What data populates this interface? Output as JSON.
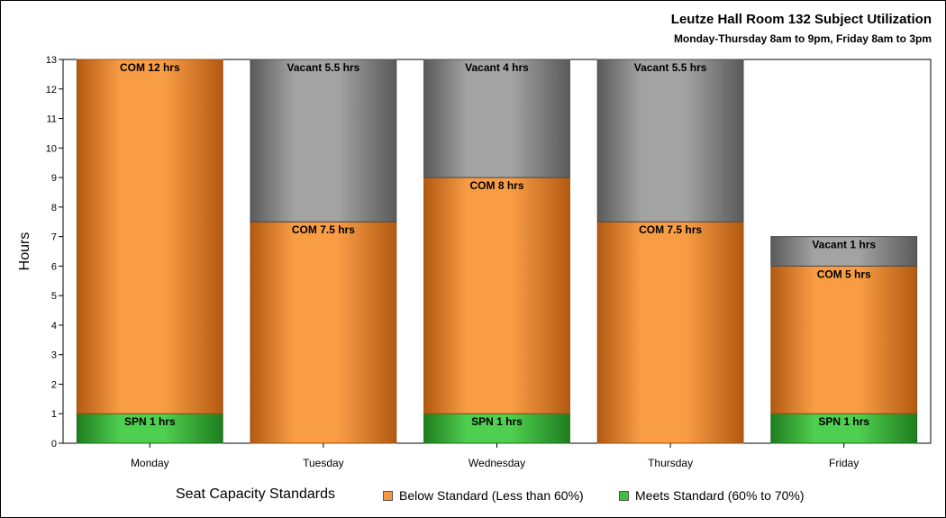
{
  "chart_data": {
    "type": "bar",
    "stacked": true,
    "title": "Leutze Hall Room 132 Subject Utilization",
    "subtitle": "Monday-Thursday 8am to 9pm, Friday 8am to 3pm",
    "xlabel": "",
    "ylabel": "Hours",
    "ylim": [
      0,
      13
    ],
    "yticks": [
      "0",
      "1",
      "2",
      "3",
      "4",
      "5",
      "6",
      "7",
      "8",
      "9",
      "10",
      "11",
      "12",
      "13"
    ],
    "categories": [
      "Monday",
      "Tuesday",
      "Wednesday",
      "Thursday",
      "Friday"
    ],
    "grid": false,
    "legend_position": "bottom",
    "segments": [
      [
        {
          "kind": "meets",
          "value": 1,
          "label": "SPN 1 hrs"
        },
        {
          "kind": "below",
          "value": 12,
          "label": "COM 12 hrs"
        }
      ],
      [
        {
          "kind": "below",
          "value": 7.5,
          "label": "COM 7.5 hrs"
        },
        {
          "kind": "vacant",
          "value": 5.5,
          "label": "Vacant 5.5 hrs"
        }
      ],
      [
        {
          "kind": "meets",
          "value": 1,
          "label": "SPN 1 hrs"
        },
        {
          "kind": "below",
          "value": 8,
          "label": "COM 8 hrs"
        },
        {
          "kind": "vacant",
          "value": 4,
          "label": "Vacant 4 hrs"
        }
      ],
      [
        {
          "kind": "below",
          "value": 7.5,
          "label": "COM 7.5 hrs"
        },
        {
          "kind": "vacant",
          "value": 5.5,
          "label": "Vacant 5.5 hrs"
        }
      ],
      [
        {
          "kind": "meets",
          "value": 1,
          "label": "SPN 1 hrs"
        },
        {
          "kind": "below",
          "value": 5,
          "label": "COM 5 hrs"
        },
        {
          "kind": "vacant",
          "value": 1,
          "label": "Vacant 1 hrs"
        }
      ]
    ],
    "colors": {
      "below": "#f5973a",
      "meets": "#3fbf3f",
      "vacant": "#8c8c8c"
    },
    "legend": {
      "title": "Seat Capacity Standards",
      "items": [
        {
          "kind": "below",
          "label": "Below Standard (Less than 60%)"
        },
        {
          "kind": "meets",
          "label": "Meets Standard (60% to 70%)"
        }
      ]
    }
  }
}
